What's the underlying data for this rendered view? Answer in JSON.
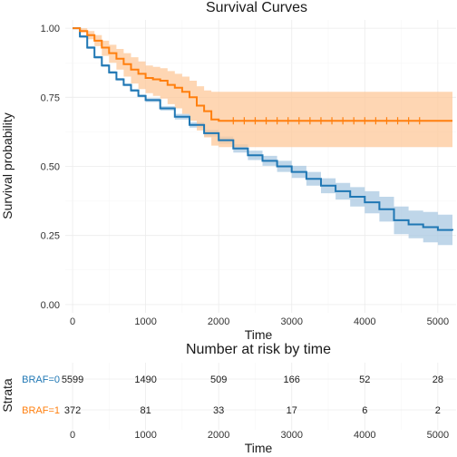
{
  "chart_data": [
    {
      "type": "line",
      "subtype": "kaplan-meier survival curves with confidence bands",
      "title": "Survival Curves",
      "xlabel": "Time",
      "ylabel": "Survival probability",
      "xlim": [
        -100,
        5250
      ],
      "ylim": [
        -0.03,
        1.03
      ],
      "x_ticks": [
        0,
        1000,
        2000,
        3000,
        4000,
        5000
      ],
      "y_ticks": [
        0.0,
        0.25,
        0.5,
        0.75,
        1.0
      ],
      "x_tick_labels": [
        "0",
        "1000",
        "2000",
        "3000",
        "4000",
        "5000"
      ],
      "y_tick_labels": [
        "0.00",
        "0.25",
        "0.50",
        "0.75",
        "1.00"
      ],
      "grid": true,
      "legend": "none",
      "series": [
        {
          "name": "BRAF=0",
          "color": "#1f77b4",
          "band_color": "#a9c8e2",
          "x": [
            0,
            100,
            200,
            300,
            400,
            500,
            600,
            700,
            800,
            900,
            1000,
            1200,
            1400,
            1600,
            1800,
            2000,
            2200,
            2400,
            2600,
            2800,
            3000,
            3200,
            3400,
            3600,
            3800,
            4000,
            4200,
            4400,
            4600,
            4800,
            5000,
            5200
          ],
          "y": [
            1.0,
            0.97,
            0.93,
            0.895,
            0.865,
            0.84,
            0.815,
            0.795,
            0.775,
            0.755,
            0.74,
            0.71,
            0.68,
            0.65,
            0.62,
            0.595,
            0.565,
            0.54,
            0.52,
            0.5,
            0.48,
            0.455,
            0.43,
            0.41,
            0.39,
            0.37,
            0.345,
            0.305,
            0.29,
            0.28,
            0.27,
            0.268
          ],
          "lower": [
            1.0,
            0.965,
            0.925,
            0.89,
            0.86,
            0.835,
            0.81,
            0.79,
            0.77,
            0.75,
            0.733,
            0.702,
            0.67,
            0.64,
            0.608,
            0.582,
            0.55,
            0.523,
            0.502,
            0.48,
            0.458,
            0.43,
            0.403,
            0.38,
            0.355,
            0.33,
            0.3,
            0.255,
            0.24,
            0.225,
            0.215,
            0.21
          ],
          "upper": [
            1.0,
            0.975,
            0.935,
            0.9,
            0.87,
            0.845,
            0.82,
            0.8,
            0.78,
            0.76,
            0.747,
            0.718,
            0.69,
            0.66,
            0.632,
            0.608,
            0.58,
            0.557,
            0.538,
            0.52,
            0.502,
            0.48,
            0.457,
            0.44,
            0.425,
            0.41,
            0.39,
            0.355,
            0.34,
            0.335,
            0.325,
            0.325
          ]
        },
        {
          "name": "BRAF=1",
          "color": "#ff7f0e",
          "band_color": "#fdc89a",
          "x": [
            0,
            100,
            200,
            300,
            400,
            500,
            600,
            700,
            800,
            900,
            1000,
            1100,
            1200,
            1300,
            1400,
            1500,
            1600,
            1700,
            1800,
            1900,
            2000,
            2200,
            2500,
            3000,
            3500,
            4000,
            4500,
            5000,
            5200
          ],
          "y": [
            1.0,
            0.99,
            0.975,
            0.955,
            0.93,
            0.91,
            0.89,
            0.87,
            0.85,
            0.835,
            0.82,
            0.815,
            0.81,
            0.795,
            0.785,
            0.77,
            0.75,
            0.72,
            0.7,
            0.67,
            0.665,
            0.665,
            0.665,
            0.665,
            0.665,
            0.665,
            0.665,
            0.665,
            0.665
          ],
          "lower": [
            1.0,
            0.985,
            0.96,
            0.935,
            0.9,
            0.875,
            0.85,
            0.825,
            0.8,
            0.78,
            0.765,
            0.755,
            0.745,
            0.725,
            0.71,
            0.69,
            0.665,
            0.63,
            0.605,
            0.575,
            0.57,
            0.57,
            0.57,
            0.57,
            0.57,
            0.57,
            0.57,
            0.57,
            0.57
          ],
          "upper": [
            1.0,
            1.0,
            0.99,
            0.975,
            0.955,
            0.94,
            0.925,
            0.91,
            0.895,
            0.88,
            0.865,
            0.86,
            0.855,
            0.845,
            0.835,
            0.825,
            0.81,
            0.79,
            0.775,
            0.77,
            0.77,
            0.77,
            0.77,
            0.77,
            0.77,
            0.77,
            0.77,
            0.77,
            0.77
          ]
        }
      ],
      "censor_marks": {
        "BRAF=1": [
          2200,
          2350,
          2500,
          2650,
          2800,
          2950,
          3100,
          3250,
          3400,
          3550,
          3700,
          3850,
          4000,
          4150,
          4300,
          4450,
          4600,
          4750
        ]
      }
    },
    {
      "type": "table",
      "title": "Number at risk by time",
      "xlabel": "Time",
      "ylabel": "Strata",
      "x_ticks": [
        0,
        1000,
        2000,
        3000,
        4000,
        5000
      ],
      "x_tick_labels": [
        "0",
        "1000",
        "2000",
        "3000",
        "4000",
        "5000"
      ],
      "rows": [
        {
          "label": "BRAF=0",
          "color": "#1f77b4",
          "values": [
            5599,
            1490,
            509,
            166,
            52,
            28
          ]
        },
        {
          "label": "BRAF=1",
          "color": "#ff7f0e",
          "values": [
            372,
            81,
            33,
            17,
            6,
            2
          ]
        }
      ]
    }
  ]
}
